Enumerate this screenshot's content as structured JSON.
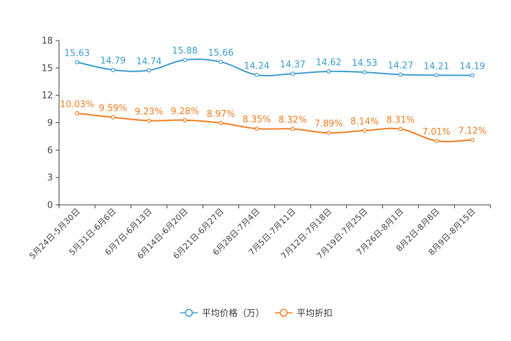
{
  "chart_data": {
    "type": "line",
    "categories": [
      "5月24日-5月30日",
      "5月31日-6月6日",
      "6月7日-6月13日",
      "6月14日-6月20日",
      "6月21日-6月27日",
      "6月28日-7月4日",
      "7月5日-7月11日",
      "7月12日-7月18日",
      "7月19日-7月25日",
      "7月26日-8月1日",
      "8月2日-8月8日",
      "8月9日-8月15日"
    ],
    "ylim": [
      0,
      18
    ],
    "yticks": [
      0,
      3,
      6,
      9,
      12,
      15,
      18
    ],
    "series": [
      {
        "name": "平均价格（万）",
        "color": "#3a9bd0",
        "values": [
          15.63,
          14.79,
          14.74,
          15.88,
          15.66,
          14.24,
          14.37,
          14.62,
          14.53,
          14.27,
          14.21,
          14.19
        ],
        "labels": [
          "15.63",
          "14.79",
          "14.74",
          "15.88",
          "15.66",
          "14.24",
          "14.37",
          "14.62",
          "14.53",
          "14.27",
          "14.21",
          "14.19"
        ]
      },
      {
        "name": "平均折扣",
        "color": "#f07c1e",
        "values": [
          10.03,
          9.59,
          9.23,
          9.28,
          8.97,
          8.35,
          8.32,
          7.89,
          8.14,
          8.31,
          7.01,
          7.12
        ],
        "labels": [
          "10.03%",
          "9.59%",
          "9.23%",
          "9.28%",
          "8.97%",
          "8.35%",
          "8.32%",
          "7.89%",
          "8.14%",
          "8.31%",
          "7.01%",
          "7.12%"
        ]
      }
    ],
    "legend": "bottom-center",
    "grid": false
  }
}
